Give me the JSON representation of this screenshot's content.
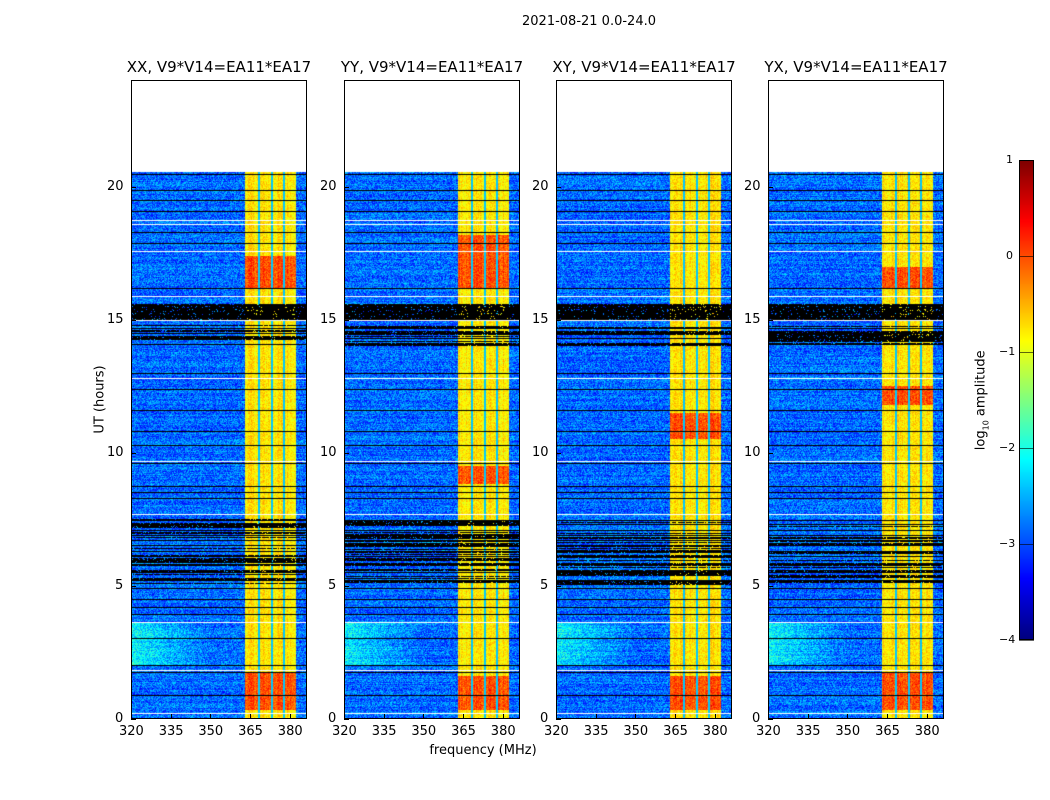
{
  "chart_data": {
    "type": "heatmap",
    "title": "2021-08-21 0.0-24.0",
    "xlabel": "frequency (MHz)",
    "ylabel": "UT (hours)",
    "xlim": [
      320,
      386.5
    ],
    "ylim": [
      0,
      24
    ],
    "xticks": [
      "320",
      "335",
      "350",
      "365",
      "380"
    ],
    "xtick_values": [
      320,
      335,
      350,
      365,
      380
    ],
    "yticks": [
      "0",
      "5",
      "10",
      "15",
      "20"
    ],
    "ytick_values": [
      0,
      5,
      10,
      15,
      20
    ],
    "panels": [
      {
        "title": "XX, V9*V14=EA11*EA17",
        "strong_rows": [
          [
            0.3,
            1.7
          ],
          [
            16.2,
            17.4
          ]
        ]
      },
      {
        "title": "YY, V9*V14=EA11*EA17",
        "strong_rows": [
          [
            0.3,
            1.6
          ],
          [
            8.8,
            9.5
          ],
          [
            16.2,
            18.2
          ]
        ]
      },
      {
        "title": "XY, V9*V14=EA11*EA17",
        "strong_rows": [
          [
            0.3,
            1.6
          ],
          [
            10.5,
            11.5
          ]
        ]
      },
      {
        "title": "YX, V9*V14=EA11*EA17",
        "strong_rows": [
          [
            0.3,
            1.7
          ],
          [
            16.2,
            17.0
          ],
          [
            11.8,
            12.5
          ]
        ]
      }
    ],
    "data_end_hour": 20.6,
    "background_log_amplitude": -3.0,
    "rfi_band_mhz": [
      363,
      382.5
    ],
    "rfi_band_log_amplitude": -0.9,
    "band_gaps_mhz": [
      368.5,
      373.5,
      378.2
    ],
    "flagged_black_hours": [
      0.85,
      1.75,
      2.0,
      3.0,
      3.9,
      4.2,
      4.5,
      4.9,
      5.2,
      5.5,
      5.8,
      6.1,
      6.3,
      6.5,
      6.7,
      6.9,
      7.1,
      7.3,
      7.45,
      8.3,
      8.5,
      8.75,
      9.6,
      10.3,
      10.8,
      11.6,
      12.4,
      13.0,
      14.1,
      14.3,
      14.5,
      14.7,
      15.0,
      15.1,
      15.2,
      15.3,
      15.45,
      15.55,
      16.2,
      17.9,
      18.3,
      19.1,
      19.5,
      19.9,
      20.5
    ],
    "flagged_white_hours": [
      0.2,
      1.8,
      3.6,
      7.7,
      9.7,
      12.8,
      15.0,
      15.9,
      17.6,
      18.6,
      18.75,
      20.6
    ],
    "colorbar": {
      "label": "log10 amplitude",
      "label_main": "log",
      "label_sub": "10",
      "label_rest": " amplitude",
      "range": [
        -4,
        1
      ],
      "ticks": [
        "1",
        "0",
        "−1",
        "−2",
        "−3",
        "−4"
      ],
      "tick_values": [
        1,
        0,
        -1,
        -2,
        -3,
        -4
      ],
      "colormap": "jet"
    }
  }
}
